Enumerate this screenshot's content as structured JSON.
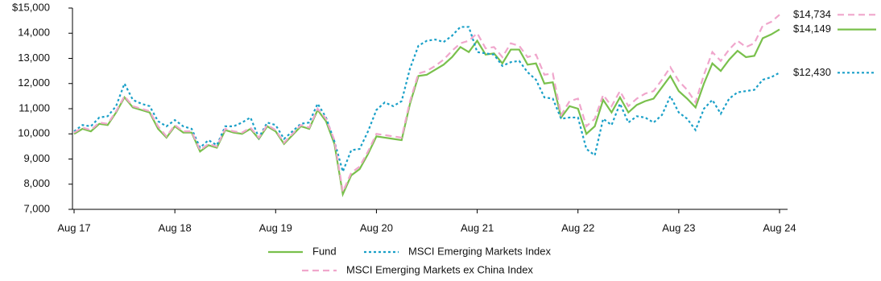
{
  "chart_data": {
    "type": "line",
    "categories": [
      "Aug 17",
      null,
      null,
      null,
      null,
      null,
      null,
      null,
      null,
      null,
      null,
      null,
      "Aug 18",
      null,
      null,
      null,
      null,
      null,
      null,
      null,
      null,
      null,
      null,
      null,
      "Aug 19",
      null,
      null,
      null,
      null,
      null,
      null,
      null,
      null,
      null,
      null,
      null,
      "Aug 20",
      null,
      null,
      null,
      null,
      null,
      null,
      null,
      null,
      null,
      null,
      null,
      "Aug 21",
      null,
      null,
      null,
      null,
      null,
      null,
      null,
      null,
      null,
      null,
      null,
      "Aug 22",
      null,
      null,
      null,
      null,
      null,
      null,
      null,
      null,
      null,
      null,
      null,
      "Aug 23",
      null,
      null,
      null,
      null,
      null,
      null,
      null,
      null,
      null,
      null,
      null,
      "Aug 24"
    ],
    "ylim": [
      7000,
      15000
    ],
    "yticks": [
      {
        "value": 7000,
        "label": "7,000"
      },
      {
        "value": 8000,
        "label": "8,000"
      },
      {
        "value": 9000,
        "label": "9,000"
      },
      {
        "value": 10000,
        "label": "10,000"
      },
      {
        "value": 11000,
        "label": "11,000"
      },
      {
        "value": 12000,
        "label": "12,000"
      },
      {
        "value": 13000,
        "label": "13,000"
      },
      {
        "value": 14000,
        "label": "14,000"
      },
      {
        "value": 15000,
        "label": "$15,000"
      }
    ],
    "grid": false,
    "series": [
      {
        "name": "Fund",
        "color": "#79c04c",
        "style": "solid",
        "values": [
          10000,
          10200,
          10100,
          10400,
          10350,
          10850,
          11450,
          11050,
          10950,
          10850,
          10200,
          9850,
          10300,
          10050,
          10050,
          9300,
          9550,
          9450,
          10150,
          10050,
          10000,
          10200,
          9800,
          10300,
          10100,
          9600,
          9950,
          10300,
          10200,
          10950,
          10500,
          9600,
          7600,
          8350,
          8600,
          9200,
          9900,
          9850,
          9800,
          9750,
          11200,
          12300,
          12350,
          12550,
          12750,
          13050,
          13450,
          13250,
          13700,
          13150,
          13200,
          12800,
          13350,
          13350,
          12750,
          12800,
          12000,
          12050,
          10650,
          11100,
          11000,
          10000,
          10300,
          11350,
          10850,
          11450,
          10850,
          11150,
          11300,
          11400,
          11850,
          12300,
          11700,
          11400,
          11050,
          12000,
          12800,
          12500,
          12950,
          13300,
          13050,
          13100,
          13800,
          13950,
          14149
        ],
        "value_labels": [
          null,
          null,
          null,
          null,
          null,
          null,
          null,
          null,
          null,
          null,
          null,
          null,
          null,
          null,
          null,
          null,
          null,
          null,
          null,
          null,
          null,
          null,
          null,
          null,
          null,
          null,
          null,
          null,
          null,
          null,
          null,
          null,
          null,
          null,
          null,
          null,
          null,
          null,
          null,
          null,
          null,
          null,
          null,
          null,
          null,
          null,
          null,
          null,
          null,
          null,
          null,
          null,
          null,
          null,
          null,
          null,
          null,
          null,
          null,
          null,
          null,
          null,
          null,
          null,
          null,
          null,
          null,
          null,
          null,
          null,
          null,
          null,
          null,
          null,
          null,
          null,
          null,
          null,
          null,
          null,
          null,
          null,
          null,
          null,
          "$14,149"
        ]
      },
      {
        "name": "MSCI Emerging Markets Index",
        "color": "#1aa0c8",
        "style": "dotted",
        "values": [
          10100,
          10350,
          10300,
          10650,
          10700,
          11100,
          12000,
          11350,
          11200,
          11100,
          10500,
          10300,
          10550,
          10300,
          10200,
          9450,
          9750,
          9550,
          10300,
          10300,
          10450,
          10650,
          9850,
          10450,
          10350,
          9800,
          10100,
          10400,
          10450,
          11200,
          10650,
          9700,
          8500,
          9350,
          9400,
          10100,
          10950,
          11250,
          11100,
          11300,
          12600,
          13500,
          13700,
          13750,
          13650,
          13900,
          14250,
          14250,
          13250,
          13200,
          13150,
          12700,
          12850,
          12900,
          12450,
          12150,
          11450,
          11400,
          10600,
          10650,
          10650,
          9400,
          9150,
          10600,
          10350,
          11200,
          10450,
          10700,
          10650,
          10450,
          10750,
          11500,
          10850,
          10600,
          10150,
          11000,
          11350,
          10800,
          11400,
          11650,
          11700,
          11750,
          12150,
          12250,
          12430
        ],
        "value_labels": [
          null,
          null,
          null,
          null,
          null,
          null,
          null,
          null,
          null,
          null,
          null,
          null,
          null,
          null,
          null,
          null,
          null,
          null,
          null,
          null,
          null,
          null,
          null,
          null,
          null,
          null,
          null,
          null,
          null,
          null,
          null,
          null,
          null,
          null,
          null,
          null,
          null,
          null,
          null,
          null,
          null,
          null,
          null,
          null,
          null,
          null,
          null,
          null,
          null,
          null,
          null,
          null,
          null,
          null,
          null,
          null,
          null,
          null,
          null,
          null,
          null,
          null,
          null,
          null,
          null,
          null,
          null,
          null,
          null,
          null,
          null,
          null,
          null,
          null,
          null,
          null,
          null,
          null,
          null,
          null,
          null,
          null,
          null,
          null,
          "$12,430"
        ]
      },
      {
        "name": "MSCI Emerging Markets ex China Index",
        "color": "#f0a6cc",
        "style": "dashed",
        "values": [
          10050,
          10250,
          10150,
          10450,
          10400,
          10900,
          11500,
          11100,
          11000,
          10900,
          10300,
          9900,
          10350,
          10100,
          10100,
          9350,
          9600,
          9500,
          10200,
          10100,
          10050,
          10250,
          9850,
          10350,
          10150,
          9650,
          10000,
          10350,
          10250,
          11000,
          10600,
          9750,
          7700,
          8450,
          8700,
          9300,
          10000,
          9950,
          9900,
          9850,
          11300,
          12400,
          12500,
          12700,
          12950,
          13300,
          13600,
          13700,
          14000,
          13400,
          13450,
          13050,
          13600,
          13500,
          13050,
          13150,
          12350,
          12400,
          10750,
          11300,
          11400,
          10300,
          10600,
          11550,
          11100,
          11700,
          11100,
          11400,
          11600,
          11700,
          12150,
          12650,
          12100,
          11750,
          11250,
          12350,
          13250,
          12900,
          13350,
          13700,
          13450,
          13600,
          14300,
          14450,
          14734
        ],
        "value_labels": [
          null,
          null,
          null,
          null,
          null,
          null,
          null,
          null,
          null,
          null,
          null,
          null,
          null,
          null,
          null,
          null,
          null,
          null,
          null,
          null,
          null,
          null,
          null,
          null,
          null,
          null,
          null,
          null,
          null,
          null,
          null,
          null,
          null,
          null,
          null,
          null,
          null,
          null,
          null,
          null,
          null,
          null,
          null,
          null,
          null,
          null,
          null,
          null,
          null,
          null,
          null,
          null,
          null,
          null,
          null,
          null,
          null,
          null,
          null,
          null,
          null,
          null,
          null,
          null,
          null,
          null,
          null,
          null,
          null,
          null,
          null,
          null,
          null,
          null,
          null,
          null,
          null,
          null,
          null,
          null,
          null,
          null,
          null,
          null,
          "$14,734"
        ]
      }
    ],
    "legend": "bottom"
  }
}
